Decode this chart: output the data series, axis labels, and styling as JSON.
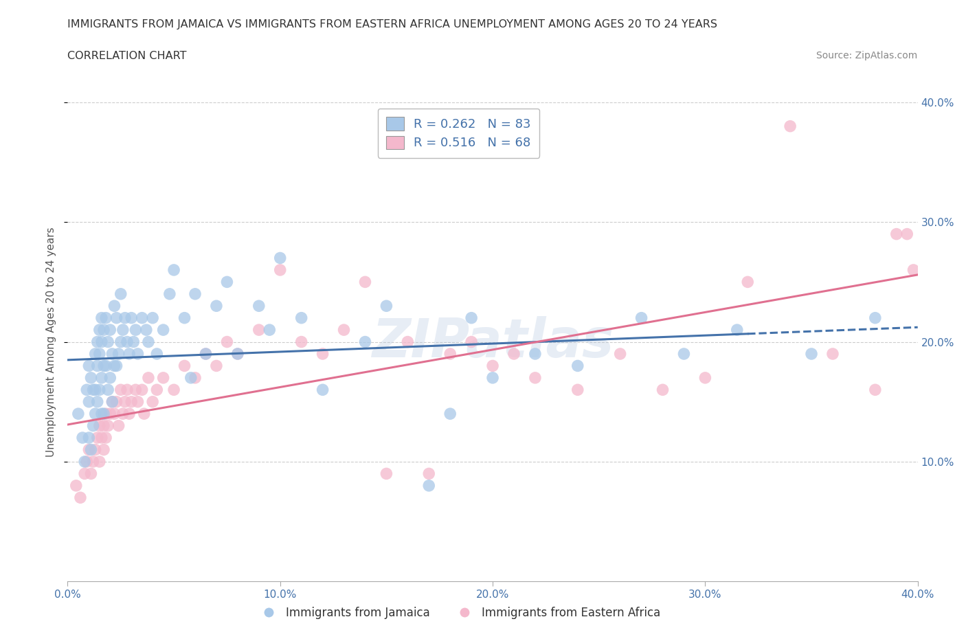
{
  "title_line1": "IMMIGRANTS FROM JAMAICA VS IMMIGRANTS FROM EASTERN AFRICA UNEMPLOYMENT AMONG AGES 20 TO 24 YEARS",
  "title_line2": "CORRELATION CHART",
  "source": "Source: ZipAtlas.com",
  "ylabel": "Unemployment Among Ages 20 to 24 years",
  "xlim": [
    0.0,
    0.4
  ],
  "ylim": [
    0.0,
    0.4
  ],
  "xticks": [
    0.0,
    0.1,
    0.2,
    0.3,
    0.4
  ],
  "yticks": [
    0.1,
    0.2,
    0.3,
    0.4
  ],
  "xticklabels": [
    "0.0%",
    "10.0%",
    "20.0%",
    "30.0%",
    "40.0%"
  ],
  "yticklabels": [
    "10.0%",
    "20.0%",
    "30.0%",
    "40.0%"
  ],
  "grid_color": "#cccccc",
  "watermark": "ZIPatlas",
  "blue_color": "#a8c8e8",
  "pink_color": "#f4b8cc",
  "blue_line_color": "#4472aa",
  "pink_line_color": "#e07090",
  "R_blue": 0.262,
  "N_blue": 83,
  "R_pink": 0.516,
  "N_pink": 68,
  "legend_label_blue": "Immigrants from Jamaica",
  "legend_label_pink": "Immigrants from Eastern Africa",
  "blue_x": [
    0.005,
    0.007,
    0.008,
    0.009,
    0.01,
    0.01,
    0.01,
    0.011,
    0.011,
    0.012,
    0.012,
    0.013,
    0.013,
    0.013,
    0.014,
    0.014,
    0.014,
    0.015,
    0.015,
    0.015,
    0.016,
    0.016,
    0.016,
    0.016,
    0.017,
    0.017,
    0.017,
    0.018,
    0.018,
    0.019,
    0.019,
    0.02,
    0.02,
    0.021,
    0.021,
    0.022,
    0.022,
    0.023,
    0.023,
    0.024,
    0.025,
    0.025,
    0.026,
    0.027,
    0.028,
    0.029,
    0.03,
    0.031,
    0.032,
    0.033,
    0.035,
    0.037,
    0.038,
    0.04,
    0.042,
    0.045,
    0.048,
    0.05,
    0.055,
    0.058,
    0.06,
    0.065,
    0.07,
    0.075,
    0.08,
    0.09,
    0.095,
    0.1,
    0.11,
    0.12,
    0.14,
    0.15,
    0.17,
    0.18,
    0.19,
    0.2,
    0.22,
    0.24,
    0.27,
    0.29,
    0.315,
    0.35,
    0.38
  ],
  "blue_y": [
    0.14,
    0.12,
    0.1,
    0.16,
    0.18,
    0.15,
    0.12,
    0.17,
    0.11,
    0.16,
    0.13,
    0.19,
    0.16,
    0.14,
    0.2,
    0.18,
    0.15,
    0.21,
    0.19,
    0.16,
    0.22,
    0.2,
    0.17,
    0.14,
    0.21,
    0.18,
    0.14,
    0.22,
    0.18,
    0.2,
    0.16,
    0.21,
    0.17,
    0.19,
    0.15,
    0.23,
    0.18,
    0.22,
    0.18,
    0.19,
    0.24,
    0.2,
    0.21,
    0.22,
    0.2,
    0.19,
    0.22,
    0.2,
    0.21,
    0.19,
    0.22,
    0.21,
    0.2,
    0.22,
    0.19,
    0.21,
    0.24,
    0.26,
    0.22,
    0.17,
    0.24,
    0.19,
    0.23,
    0.25,
    0.19,
    0.23,
    0.21,
    0.27,
    0.22,
    0.16,
    0.2,
    0.23,
    0.08,
    0.14,
    0.22,
    0.17,
    0.19,
    0.18,
    0.22,
    0.19,
    0.21,
    0.19,
    0.22
  ],
  "pink_x": [
    0.004,
    0.006,
    0.008,
    0.009,
    0.01,
    0.011,
    0.012,
    0.013,
    0.014,
    0.015,
    0.015,
    0.016,
    0.017,
    0.017,
    0.018,
    0.018,
    0.019,
    0.02,
    0.021,
    0.022,
    0.023,
    0.024,
    0.025,
    0.026,
    0.027,
    0.028,
    0.029,
    0.03,
    0.032,
    0.033,
    0.035,
    0.036,
    0.038,
    0.04,
    0.042,
    0.045,
    0.05,
    0.055,
    0.06,
    0.065,
    0.07,
    0.075,
    0.08,
    0.09,
    0.1,
    0.11,
    0.12,
    0.13,
    0.14,
    0.15,
    0.16,
    0.17,
    0.18,
    0.19,
    0.2,
    0.21,
    0.22,
    0.24,
    0.26,
    0.28,
    0.3,
    0.32,
    0.34,
    0.36,
    0.38,
    0.39,
    0.395,
    0.398
  ],
  "pink_y": [
    0.08,
    0.07,
    0.09,
    0.1,
    0.11,
    0.09,
    0.1,
    0.11,
    0.12,
    0.13,
    0.1,
    0.12,
    0.13,
    0.11,
    0.14,
    0.12,
    0.13,
    0.14,
    0.15,
    0.14,
    0.15,
    0.13,
    0.16,
    0.14,
    0.15,
    0.16,
    0.14,
    0.15,
    0.16,
    0.15,
    0.16,
    0.14,
    0.17,
    0.15,
    0.16,
    0.17,
    0.16,
    0.18,
    0.17,
    0.19,
    0.18,
    0.2,
    0.19,
    0.21,
    0.26,
    0.2,
    0.19,
    0.21,
    0.25,
    0.09,
    0.2,
    0.09,
    0.19,
    0.2,
    0.18,
    0.19,
    0.17,
    0.16,
    0.19,
    0.16,
    0.17,
    0.25,
    0.38,
    0.19,
    0.16,
    0.29,
    0.29,
    0.26
  ]
}
